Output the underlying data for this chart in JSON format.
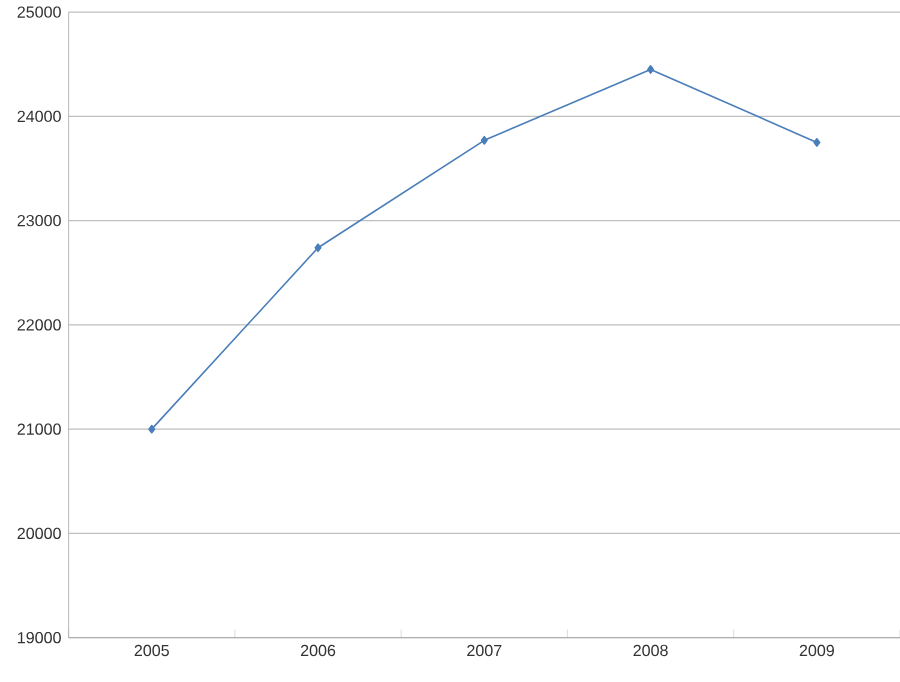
{
  "chart_data": {
    "type": "line",
    "categories": [
      "2005",
      "2006",
      "2007",
      "2008",
      "2009"
    ],
    "series": [
      {
        "color": "#4a7ebb",
        "values": [
          21000,
          22740,
          23770,
          24450,
          23750
        ]
      }
    ],
    "ylim": [
      19000,
      25000
    ],
    "yticks": [
      19000,
      20000,
      21000,
      22000,
      23000,
      24000,
      25000
    ],
    "grid": "y",
    "marker": "diamond",
    "line_style": "solid"
  }
}
